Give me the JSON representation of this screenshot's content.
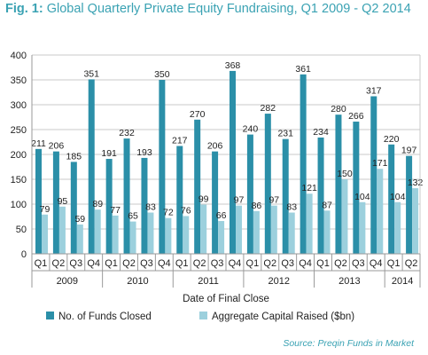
{
  "title": {
    "fig": "Fig. 1:",
    "text": "Global Quarterly Private Equity Fundraising, Q1 2009 - Q2 2014"
  },
  "source": "Source: Preqin Funds in Market",
  "chart_data": {
    "type": "bar",
    "title": "Global Quarterly Private Equity Fundraising, Q1 2009 - Q2 2014",
    "xlabel": "Date of Final Close",
    "ylabel": "",
    "ylim": [
      0,
      400
    ],
    "yticks": [
      0,
      50,
      100,
      150,
      200,
      250,
      300,
      350,
      400
    ],
    "grid": true,
    "legend_position": "bottom",
    "categories": [
      "Q1",
      "Q2",
      "Q3",
      "Q4",
      "Q1",
      "Q2",
      "Q3",
      "Q4",
      "Q1",
      "Q2",
      "Q3",
      "Q4",
      "Q1",
      "Q2",
      "Q3",
      "Q4",
      "Q1",
      "Q2",
      "Q3",
      "Q4",
      "Q1",
      "Q2"
    ],
    "years": [
      {
        "label": "2009",
        "count": 4
      },
      {
        "label": "2010",
        "count": 4
      },
      {
        "label": "2011",
        "count": 4
      },
      {
        "label": "2012",
        "count": 4
      },
      {
        "label": "2013",
        "count": 4
      },
      {
        "label": "2014",
        "count": 2
      }
    ],
    "series": [
      {
        "name": "No. of Funds Closed",
        "color": "#2b8fa8",
        "values": [
          211,
          206,
          185,
          351,
          191,
          232,
          193,
          350,
          217,
          270,
          206,
          368,
          240,
          282,
          231,
          361,
          234,
          280,
          266,
          317,
          220,
          197
        ]
      },
      {
        "name": "Aggregate Capital Raised ($bn)",
        "color": "#9cd0dd",
        "values": [
          79,
          95,
          59,
          89,
          77,
          65,
          83,
          72,
          76,
          99,
          66,
          97,
          86,
          97,
          83,
          121,
          87,
          150,
          104,
          171,
          104,
          132
        ]
      }
    ]
  }
}
